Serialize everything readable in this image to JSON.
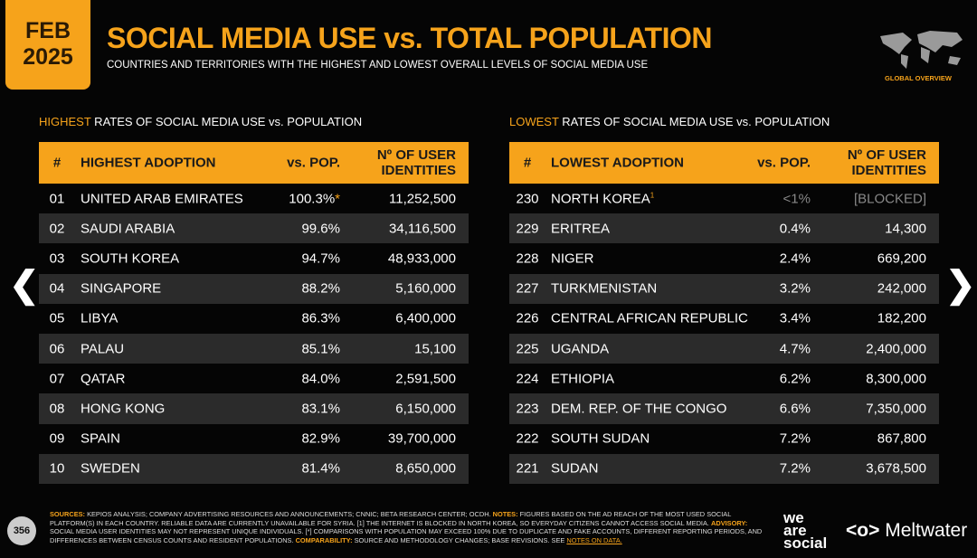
{
  "header": {
    "date": [
      "FEB",
      "2025"
    ],
    "title": "SOCIAL MEDIA USE vs. TOTAL POPULATION",
    "subtitle": "COUNTRIES AND TERRITORIES WITH THE HIGHEST AND LOWEST OVERALL LEVELS OF SOCIAL MEDIA USE",
    "badge": "GLOBAL OVERVIEW"
  },
  "tables": [
    {
      "caption_highlight": "HIGHEST",
      "caption": " RATES OF SOCIAL MEDIA USE vs. POPULATION",
      "columns": [
        "#",
        "HIGHEST ADOPTION",
        "vs. POP.",
        "Nº OF USER IDENTITIES"
      ],
      "rows": [
        {
          "rank": "01",
          "name": "UNITED ARAB EMIRATES",
          "pop": "100.3%",
          "mark": "*",
          "users": "11,252,500"
        },
        {
          "rank": "02",
          "name": "SAUDI ARABIA",
          "pop": "99.6%",
          "users": "34,116,500"
        },
        {
          "rank": "03",
          "name": "SOUTH KOREA",
          "pop": "94.7%",
          "users": "48,933,000"
        },
        {
          "rank": "04",
          "name": "SINGAPORE",
          "pop": "88.2%",
          "users": "5,160,000"
        },
        {
          "rank": "05",
          "name": "LIBYA",
          "pop": "86.3%",
          "users": "6,400,000"
        },
        {
          "rank": "06",
          "name": "PALAU",
          "pop": "85.1%",
          "users": "15,100"
        },
        {
          "rank": "07",
          "name": "QATAR",
          "pop": "84.0%",
          "users": "2,591,500"
        },
        {
          "rank": "08",
          "name": "HONG KONG",
          "pop": "83.1%",
          "users": "6,150,000"
        },
        {
          "rank": "09",
          "name": "SPAIN",
          "pop": "82.9%",
          "users": "39,700,000"
        },
        {
          "rank": "10",
          "name": "SWEDEN",
          "pop": "81.4%",
          "users": "8,650,000"
        }
      ]
    },
    {
      "caption_highlight": "LOWEST",
      "caption": " RATES OF SOCIAL MEDIA USE vs. POPULATION",
      "columns": [
        "#",
        "LOWEST ADOPTION",
        "vs. POP.",
        "Nº OF USER IDENTITIES"
      ],
      "rows": [
        {
          "rank": "230",
          "name": "NORTH KOREA",
          "note": "1",
          "pop": "<1%",
          "users": "[BLOCKED]"
        },
        {
          "rank": "229",
          "name": "ERITREA",
          "pop": "0.4%",
          "users": "14,300"
        },
        {
          "rank": "228",
          "name": "NIGER",
          "pop": "2.4%",
          "users": "669,200"
        },
        {
          "rank": "227",
          "name": "TURKMENISTAN",
          "pop": "3.2%",
          "users": "242,000"
        },
        {
          "rank": "226",
          "name": "CENTRAL AFRICAN REPUBLIC",
          "pop": "3.4%",
          "users": "182,200"
        },
        {
          "rank": "225",
          "name": "UGANDA",
          "pop": "4.7%",
          "users": "2,400,000"
        },
        {
          "rank": "224",
          "name": "ETHIOPIA",
          "pop": "6.2%",
          "users": "8,300,000"
        },
        {
          "rank": "223",
          "name": "DEM. REP. OF THE CONGO",
          "pop": "6.6%",
          "users": "7,350,000"
        },
        {
          "rank": "222",
          "name": "SOUTH SUDAN",
          "pop": "7.2%",
          "users": "867,800"
        },
        {
          "rank": "221",
          "name": "SUDAN",
          "pop": "7.2%",
          "users": "3,678,500"
        }
      ]
    }
  ],
  "footer": {
    "notes": [
      {
        "label": "SOURCES:",
        "text": " KEPIOS ANALYSIS; COMPANY ADVERTISING RESOURCES AND ANNOUNCEMENTS; CNNIC; BETA RESEARCH CENTER; OCDH. "
      },
      {
        "label": "NOTES:",
        "text": " FIGURES BASED ON THE AD REACH OF THE MOST USED SOCIAL PLATFORM(S) IN EACH COUNTRY. RELIABLE DATA ARE CURRENTLY UNAVAILABLE FOR SYRIA. [1] THE INTERNET IS BLOCKED IN NORTH KOREA, SO EVERYDAY CITIZENS CANNOT ACCESS SOCIAL MEDIA. "
      },
      {
        "label": "ADVISORY:",
        "text": " SOCIAL MEDIA USER IDENTITIES MAY NOT REPRESENT UNIQUE INDIVIDUALS. [*] COMPARISONS WITH POPULATION MAY EXCEED 100% DUE TO DUPLICATE AND FAKE ACCOUNTS, DIFFERENT REPORTING PERIODS, AND DIFFERENCES BETWEEN CENSUS COUNTS AND RESIDENT POPULATIONS. "
      },
      {
        "label": "COMPARABILITY:",
        "text": " SOURCE AND METHODOLOGY CHANGES; BASE REVISIONS. SEE ",
        "link": "NOTES ON DATA."
      }
    ],
    "page": "356",
    "logo_lines": [
      "we",
      "are",
      "social"
    ],
    "partner": "Meltwater"
  }
}
